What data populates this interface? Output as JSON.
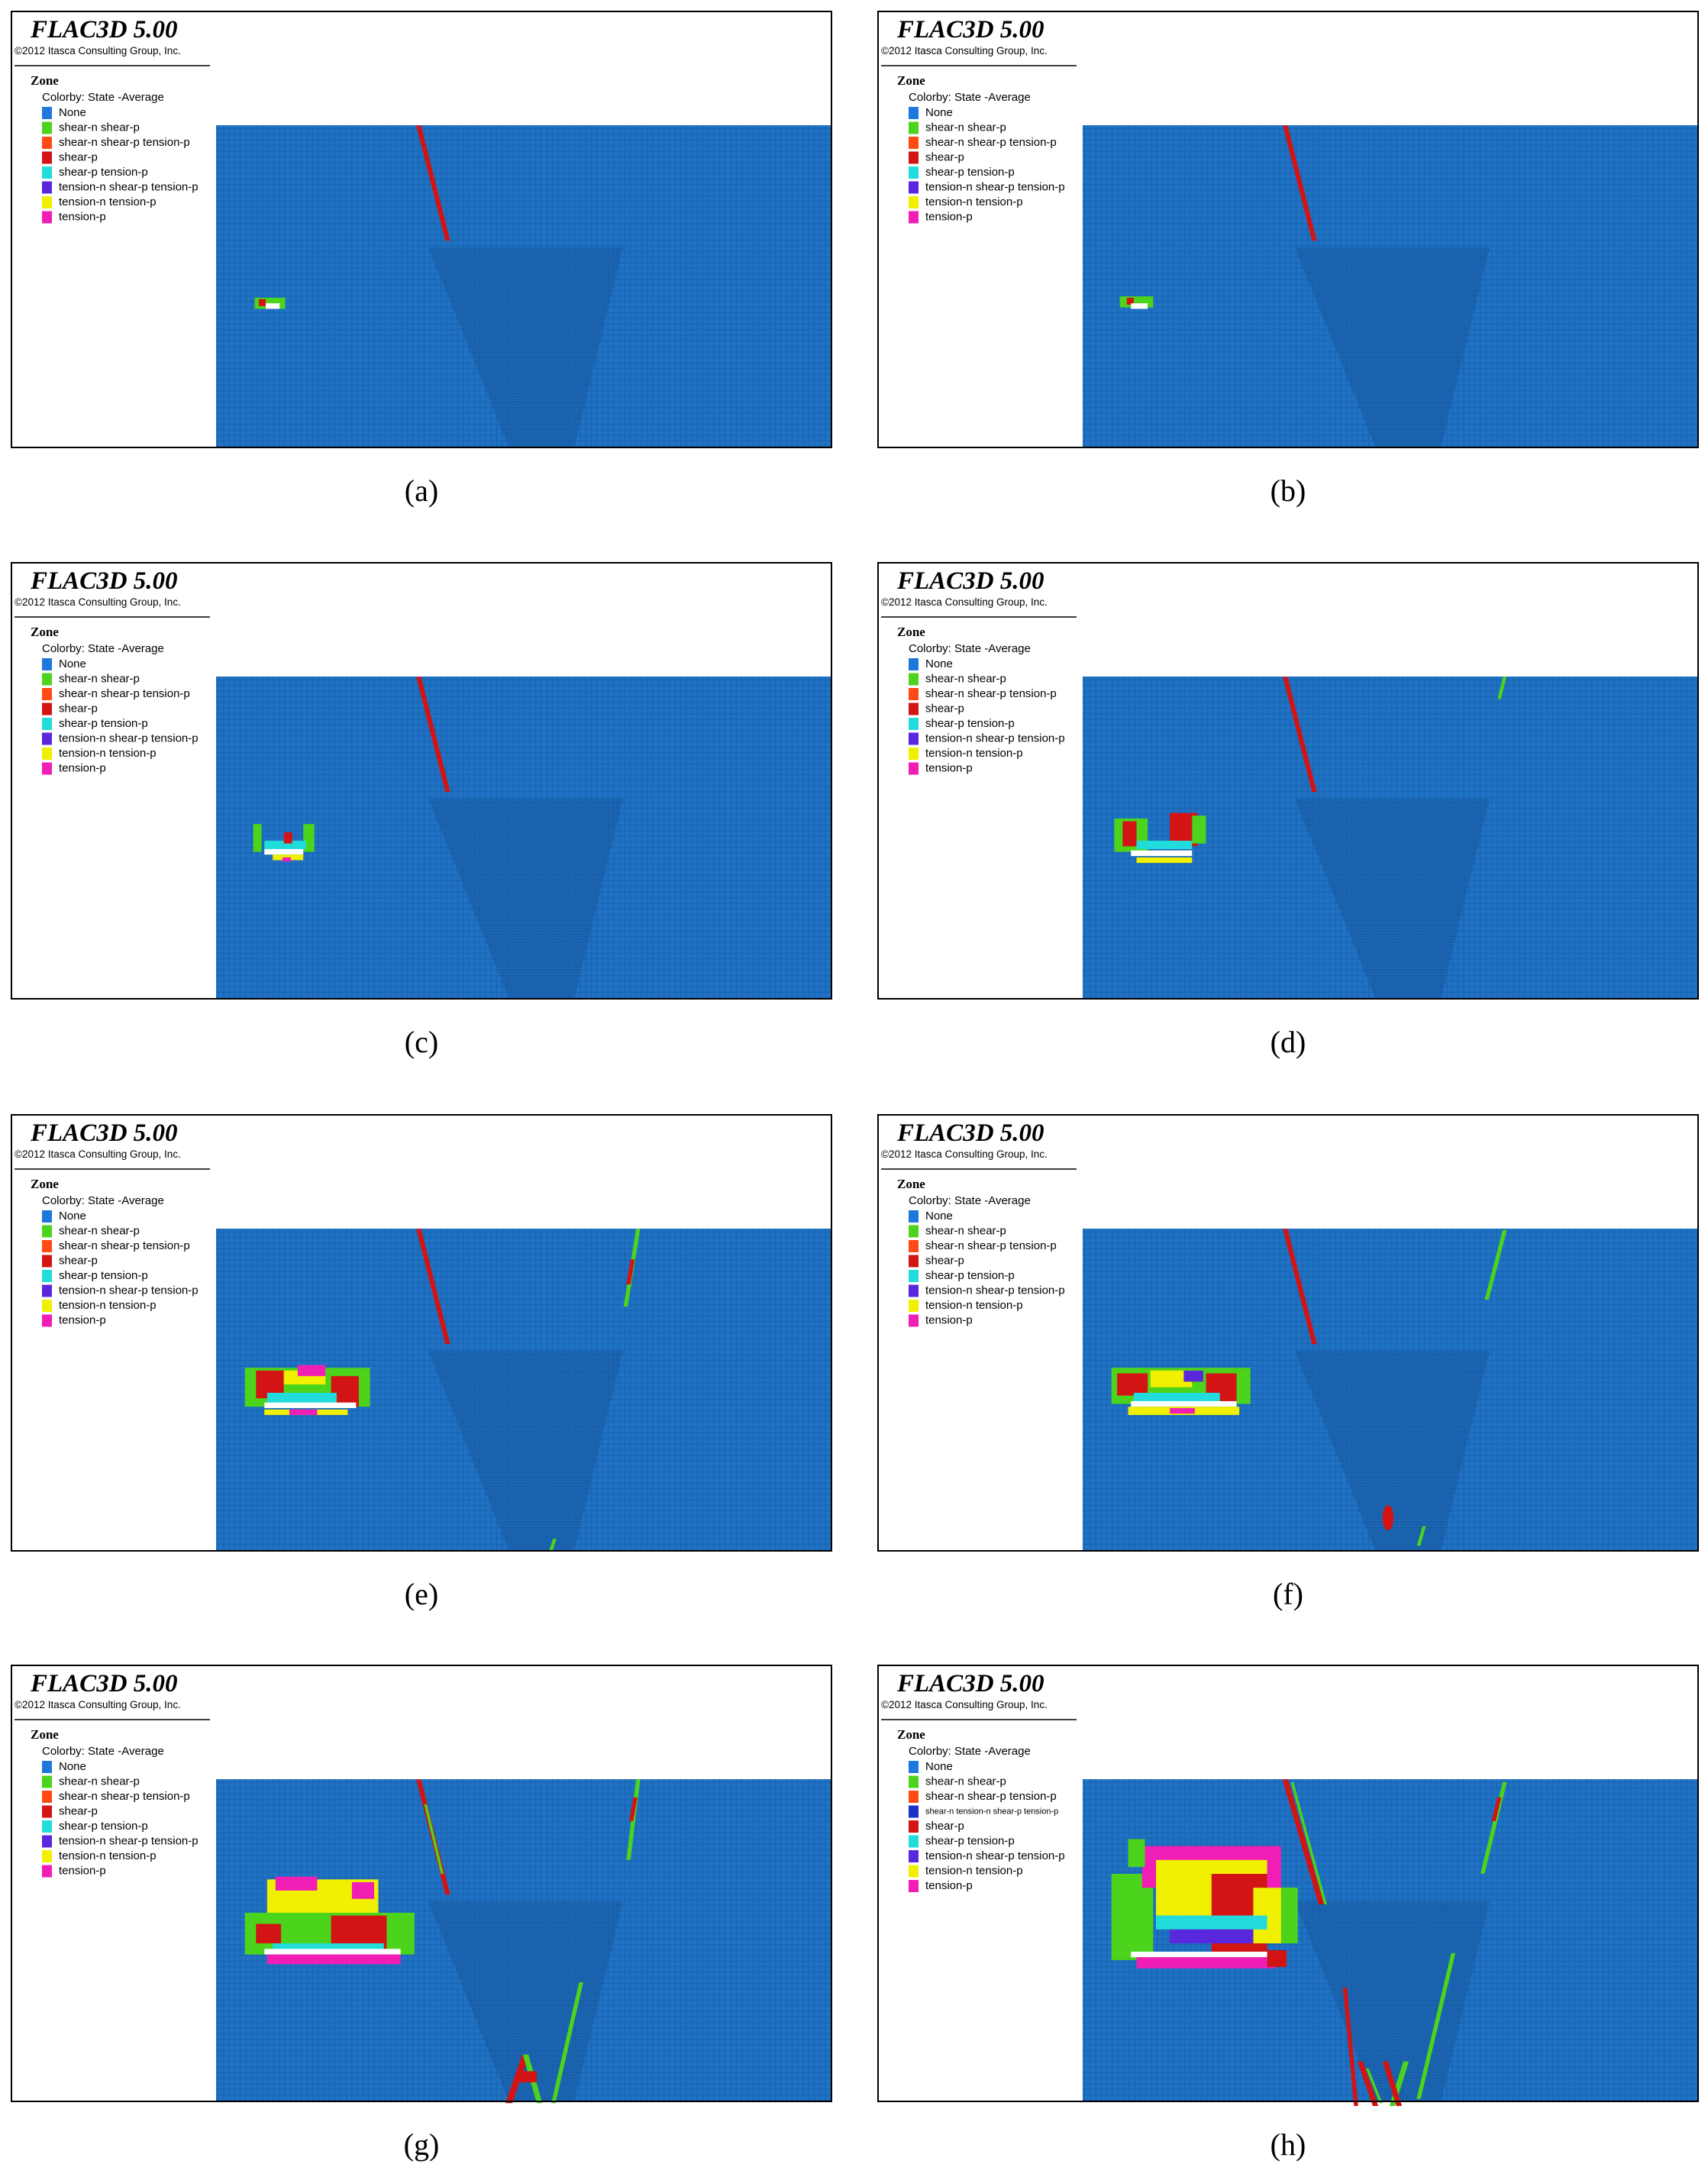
{
  "panels": [
    {
      "title": "FLAC3D 5.00",
      "copyright": "©2012 Itasca Consulting Group, Inc.",
      "group": "Zone",
      "colorby": "Colorby: State  -Average",
      "legend": [
        {
          "label": "None",
          "color": "#1e78dc"
        },
        {
          "label": "shear-n shear-p",
          "color": "#4cd41c"
        },
        {
          "label": "shear-n shear-p tension-p",
          "color": "#ff4a14"
        },
        {
          "label": "shear-p",
          "color": "#d21414"
        },
        {
          "label": "shear-p tension-p",
          "color": "#22dcdc"
        },
        {
          "label": "tension-n shear-p tension-p",
          "color": "#5a28dc"
        },
        {
          "label": "tension-n tension-p",
          "color": "#f0f000"
        },
        {
          "label": "tension-p",
          "color": "#f01eb4"
        }
      ],
      "caption": "(a)"
    },
    {
      "title": "FLAC3D 5.00",
      "copyright": "©2012 Itasca Consulting Group, Inc.",
      "group": "Zone",
      "colorby": "Colorby: State  -Average",
      "legend": [
        {
          "label": "None",
          "color": "#1e78dc"
        },
        {
          "label": "shear-n shear-p",
          "color": "#4cd41c"
        },
        {
          "label": "shear-n shear-p tension-p",
          "color": "#ff4a14"
        },
        {
          "label": "shear-p",
          "color": "#d21414"
        },
        {
          "label": "shear-p tension-p",
          "color": "#22dcdc"
        },
        {
          "label": "tension-n shear-p tension-p",
          "color": "#5a28dc"
        },
        {
          "label": "tension-n tension-p",
          "color": "#f0f000"
        },
        {
          "label": "tension-p",
          "color": "#f01eb4"
        }
      ],
      "caption": "(b)"
    },
    {
      "title": "FLAC3D 5.00",
      "copyright": "©2012 Itasca Consulting Group, Inc.",
      "group": "Zone",
      "colorby": "Colorby: State  -Average",
      "legend": [
        {
          "label": "None",
          "color": "#1e78dc"
        },
        {
          "label": "shear-n shear-p",
          "color": "#4cd41c"
        },
        {
          "label": "shear-n shear-p tension-p",
          "color": "#ff4a14"
        },
        {
          "label": "shear-p",
          "color": "#d21414"
        },
        {
          "label": "shear-p tension-p",
          "color": "#22dcdc"
        },
        {
          "label": "tension-n shear-p tension-p",
          "color": "#5a28dc"
        },
        {
          "label": "tension-n tension-p",
          "color": "#f0f000"
        },
        {
          "label": "tension-p",
          "color": "#f01eb4"
        }
      ],
      "caption": "(c)"
    },
    {
      "title": "FLAC3D 5.00",
      "copyright": "©2012 Itasca Consulting Group, Inc.",
      "group": "Zone",
      "colorby": "Colorby: State  -Average",
      "legend": [
        {
          "label": "None",
          "color": "#1e78dc"
        },
        {
          "label": "shear-n shear-p",
          "color": "#4cd41c"
        },
        {
          "label": "shear-n shear-p tension-p",
          "color": "#ff4a14"
        },
        {
          "label": "shear-p",
          "color": "#d21414"
        },
        {
          "label": "shear-p tension-p",
          "color": "#22dcdc"
        },
        {
          "label": "tension-n shear-p tension-p",
          "color": "#5a28dc"
        },
        {
          "label": "tension-n tension-p",
          "color": "#f0f000"
        },
        {
          "label": "tension-p",
          "color": "#f01eb4"
        }
      ],
      "caption": "(d)"
    },
    {
      "title": "FLAC3D 5.00",
      "copyright": "©2012 Itasca Consulting Group, Inc.",
      "group": "Zone",
      "colorby": "Colorby: State  -Average",
      "legend": [
        {
          "label": "None",
          "color": "#1e78dc"
        },
        {
          "label": "shear-n shear-p",
          "color": "#4cd41c"
        },
        {
          "label": "shear-n shear-p tension-p",
          "color": "#ff4a14"
        },
        {
          "label": "shear-p",
          "color": "#d21414"
        },
        {
          "label": "shear-p tension-p",
          "color": "#22dcdc"
        },
        {
          "label": "tension-n shear-p tension-p",
          "color": "#5a28dc"
        },
        {
          "label": "tension-n tension-p",
          "color": "#f0f000"
        },
        {
          "label": "tension-p",
          "color": "#f01eb4"
        }
      ],
      "caption": "(e)"
    },
    {
      "title": "FLAC3D 5.00",
      "copyright": "©2012 Itasca Consulting Group, Inc.",
      "group": "Zone",
      "colorby": "Colorby: State  -Average",
      "legend": [
        {
          "label": "None",
          "color": "#1e78dc"
        },
        {
          "label": "shear-n shear-p",
          "color": "#4cd41c"
        },
        {
          "label": "shear-n shear-p tension-p",
          "color": "#ff4a14"
        },
        {
          "label": "shear-p",
          "color": "#d21414"
        },
        {
          "label": "shear-p tension-p",
          "color": "#22dcdc"
        },
        {
          "label": "tension-n shear-p tension-p",
          "color": "#5a28dc"
        },
        {
          "label": "tension-n tension-p",
          "color": "#f0f000"
        },
        {
          "label": "tension-p",
          "color": "#f01eb4"
        }
      ],
      "caption": "(f)"
    },
    {
      "title": "FLAC3D 5.00",
      "copyright": "©2012 Itasca Consulting Group, Inc.",
      "group": "Zone",
      "colorby": "Colorby: State  -Average",
      "legend": [
        {
          "label": "None",
          "color": "#1e78dc"
        },
        {
          "label": "shear-n shear-p",
          "color": "#4cd41c"
        },
        {
          "label": "shear-n shear-p tension-p",
          "color": "#ff4a14"
        },
        {
          "label": "shear-p",
          "color": "#d21414"
        },
        {
          "label": "shear-p tension-p",
          "color": "#22dcdc"
        },
        {
          "label": "tension-n shear-p tension-p",
          "color": "#5a28dc"
        },
        {
          "label": "tension-n tension-p",
          "color": "#f0f000"
        },
        {
          "label": "tension-p",
          "color": "#f01eb4"
        }
      ],
      "caption": "(g)"
    },
    {
      "title": "FLAC3D 5.00",
      "copyright": "©2012 Itasca Consulting Group, Inc.",
      "group": "Zone",
      "colorby": "Colorby: State  -Average",
      "legend": [
        {
          "label": "None",
          "color": "#1e78dc"
        },
        {
          "label": "shear-n shear-p",
          "color": "#4cd41c"
        },
        {
          "label": "shear-n shear-p tension-p",
          "color": "#ff4a14"
        },
        {
          "label": "shear-n tension-n shear-p tension-p",
          "color": "#1a32c8"
        },
        {
          "label": "shear-p",
          "color": "#d21414"
        },
        {
          "label": "shear-p tension-p",
          "color": "#22dcdc"
        },
        {
          "label": "tension-n shear-p tension-p",
          "color": "#5a28dc"
        },
        {
          "label": "tension-n tension-p",
          "color": "#f0f000"
        },
        {
          "label": "tension-p",
          "color": "#f01eb4"
        }
      ],
      "caption": "(h)"
    }
  ]
}
